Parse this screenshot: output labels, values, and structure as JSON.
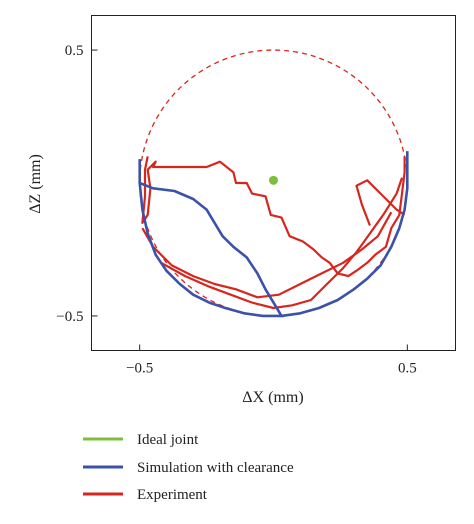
{
  "chart_data": {
    "type": "line",
    "xlabel": "ΔX (mm)",
    "ylabel": "ΔZ (mm)",
    "xlim": [
      -0.68,
      0.68
    ],
    "ylim": [
      -0.63,
      0.63
    ],
    "xticks": [
      -0.5,
      0.5
    ],
    "xtick_labels": [
      "−0.5",
      "0.5"
    ],
    "yticks": [
      -0.5,
      0.5
    ],
    "ytick_labels": [
      "−0.5",
      "0.5"
    ],
    "grid": false,
    "legend_position": "bottom-left",
    "colors": {
      "ideal": "#7dbf3a",
      "simulation": "#3c52a8",
      "experiment": "#d7261e",
      "reference": "#d7261e"
    },
    "reference_circle": {
      "center": [
        0,
        0
      ],
      "radius": 0.5,
      "style": "dashed"
    },
    "series": [
      {
        "name": "Ideal joint",
        "type": "scatter",
        "x": [
          0.0
        ],
        "y": [
          0.01
        ]
      },
      {
        "name": "Simulation with clearance",
        "type": "line",
        "x": [
          -0.5,
          -0.5,
          -0.49,
          -0.47,
          -0.44,
          -0.4,
          -0.35,
          -0.3,
          -0.24,
          -0.18,
          -0.11,
          -0.04,
          0.03,
          0.1,
          0.17,
          0.24,
          0.3,
          0.35,
          0.4,
          0.44,
          0.47,
          0.49,
          0.5,
          0.5,
          0.5
        ],
        "y": [
          0.09,
          0.0,
          -0.1,
          -0.19,
          -0.27,
          -0.33,
          -0.38,
          -0.42,
          -0.45,
          -0.47,
          -0.49,
          -0.5,
          -0.5,
          -0.49,
          -0.47,
          -0.44,
          -0.4,
          -0.36,
          -0.31,
          -0.24,
          -0.17,
          -0.1,
          -0.02,
          0.06,
          0.12
        ],
        "branch": {
          "x": [
            -0.5,
            -0.45,
            -0.37,
            -0.3,
            -0.25,
            -0.22,
            -0.19,
            -0.15,
            -0.1,
            -0.06,
            -0.03,
            0.0,
            0.03,
            0.04
          ],
          "y": [
            0.0,
            -0.02,
            -0.03,
            -0.06,
            -0.1,
            -0.15,
            -0.2,
            -0.24,
            -0.28,
            -0.34,
            -0.4,
            -0.45,
            -0.5,
            -0.5
          ]
        }
      },
      {
        "name": "Experiment",
        "type": "line",
        "x": [
          -0.47,
          -0.48,
          -0.48,
          -0.49,
          -0.47,
          -0.46,
          -0.47,
          -0.44,
          -0.45,
          -0.25,
          -0.2,
          -0.15,
          -0.14,
          -0.1,
          -0.08,
          -0.03,
          -0.01,
          0.03,
          0.06,
          0.11,
          0.15,
          0.18,
          0.21,
          0.24,
          0.28,
          0.31,
          0.35,
          0.38,
          0.42,
          0.44,
          0.47,
          0.48,
          0.49,
          0.49
        ],
        "y": [
          0.1,
          0.05,
          -0.05,
          -0.15,
          -0.12,
          -0.02,
          0.05,
          0.08,
          0.06,
          0.06,
          0.08,
          0.04,
          0.0,
          0.0,
          -0.04,
          -0.05,
          -0.12,
          -0.13,
          -0.2,
          -0.22,
          -0.25,
          -0.28,
          -0.3,
          -0.34,
          -0.35,
          -0.33,
          -0.3,
          -0.27,
          -0.24,
          -0.17,
          -0.12,
          -0.04,
          0.04,
          0.1
        ],
        "branches": [
          {
            "x": [
              -0.49,
              -0.45,
              -0.38,
              -0.3,
              -0.22,
              -0.14,
              -0.06,
              0.02,
              0.1,
              0.18,
              0.26,
              0.33,
              0.39,
              0.44
            ],
            "y": [
              -0.17,
              -0.24,
              -0.31,
              -0.35,
              -0.38,
              -0.4,
              -0.43,
              -0.42,
              -0.38,
              -0.34,
              -0.3,
              -0.25,
              -0.2,
              -0.11
            ]
          },
          {
            "x": [
              -0.42,
              -0.33,
              -0.24,
              -0.16,
              -0.08,
              0.0,
              0.07,
              0.14,
              0.2,
              0.26,
              0.31,
              0.36,
              0.41,
              0.46,
              0.48
            ],
            "y": [
              -0.3,
              -0.35,
              -0.39,
              -0.42,
              -0.45,
              -0.47,
              -0.46,
              -0.44,
              -0.38,
              -0.32,
              -0.26,
              -0.19,
              -0.12,
              -0.04,
              0.02
            ]
          },
          {
            "x": [
              0.36,
              0.33,
              0.31,
              0.35,
              0.4,
              0.46,
              0.49
            ],
            "y": [
              -0.16,
              -0.08,
              -0.01,
              0.01,
              -0.04,
              -0.1,
              -0.12
            ]
          }
        ]
      }
    ]
  }
}
